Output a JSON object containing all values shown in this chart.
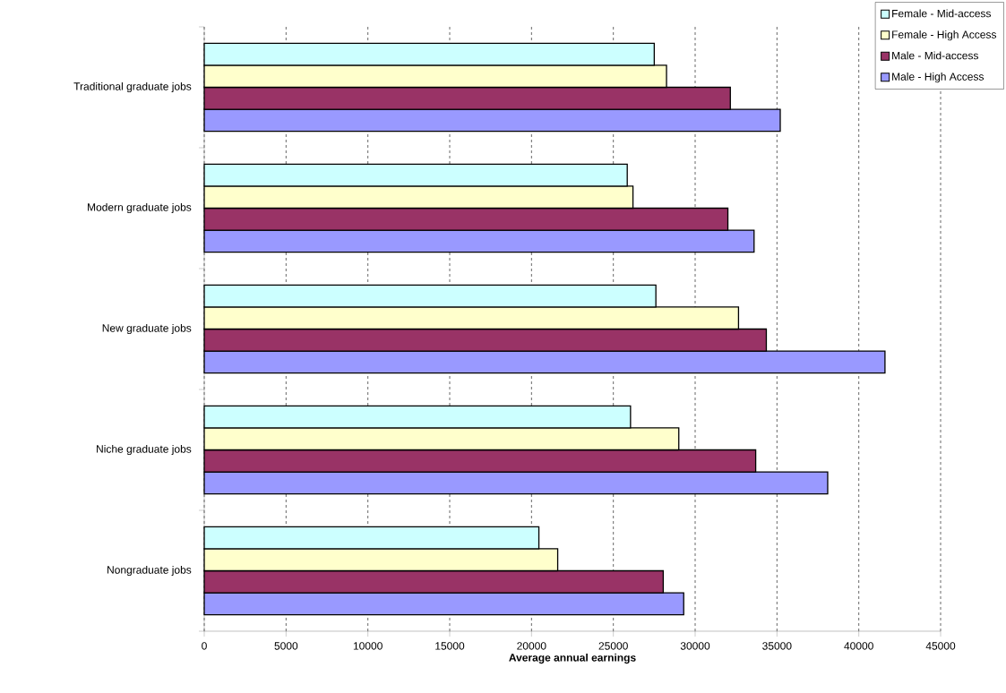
{
  "chart_data": {
    "type": "bar",
    "orientation": "horizontal",
    "xlabel": "Average annual earnings",
    "categories": [
      "Traditional graduate jobs",
      "Modern graduate jobs",
      "New graduate jobs",
      "Niche graduate jobs",
      "Nongraduate jobs"
    ],
    "series": [
      {
        "name": "Female - Mid-access",
        "color": "#ccffff",
        "values": [
          27500,
          25850,
          27600,
          26050,
          20450
        ]
      },
      {
        "name": "Female - High Access",
        "color": "#ffffcc",
        "values": [
          28250,
          26200,
          32650,
          29000,
          21600
        ]
      },
      {
        "name": "Male - Mid-access",
        "color": "#993366",
        "values": [
          32150,
          32000,
          34350,
          33700,
          28050
        ]
      },
      {
        "name": "Male - High Access",
        "color": "#9999ff",
        "values": [
          35200,
          33600,
          41600,
          38100,
          29300
        ]
      }
    ],
    "xlim": [
      0,
      45000
    ],
    "xticks": [
      0,
      5000,
      10000,
      15000,
      20000,
      25000,
      30000,
      35000,
      40000,
      45000
    ],
    "grid": "x",
    "legend": "top right"
  }
}
